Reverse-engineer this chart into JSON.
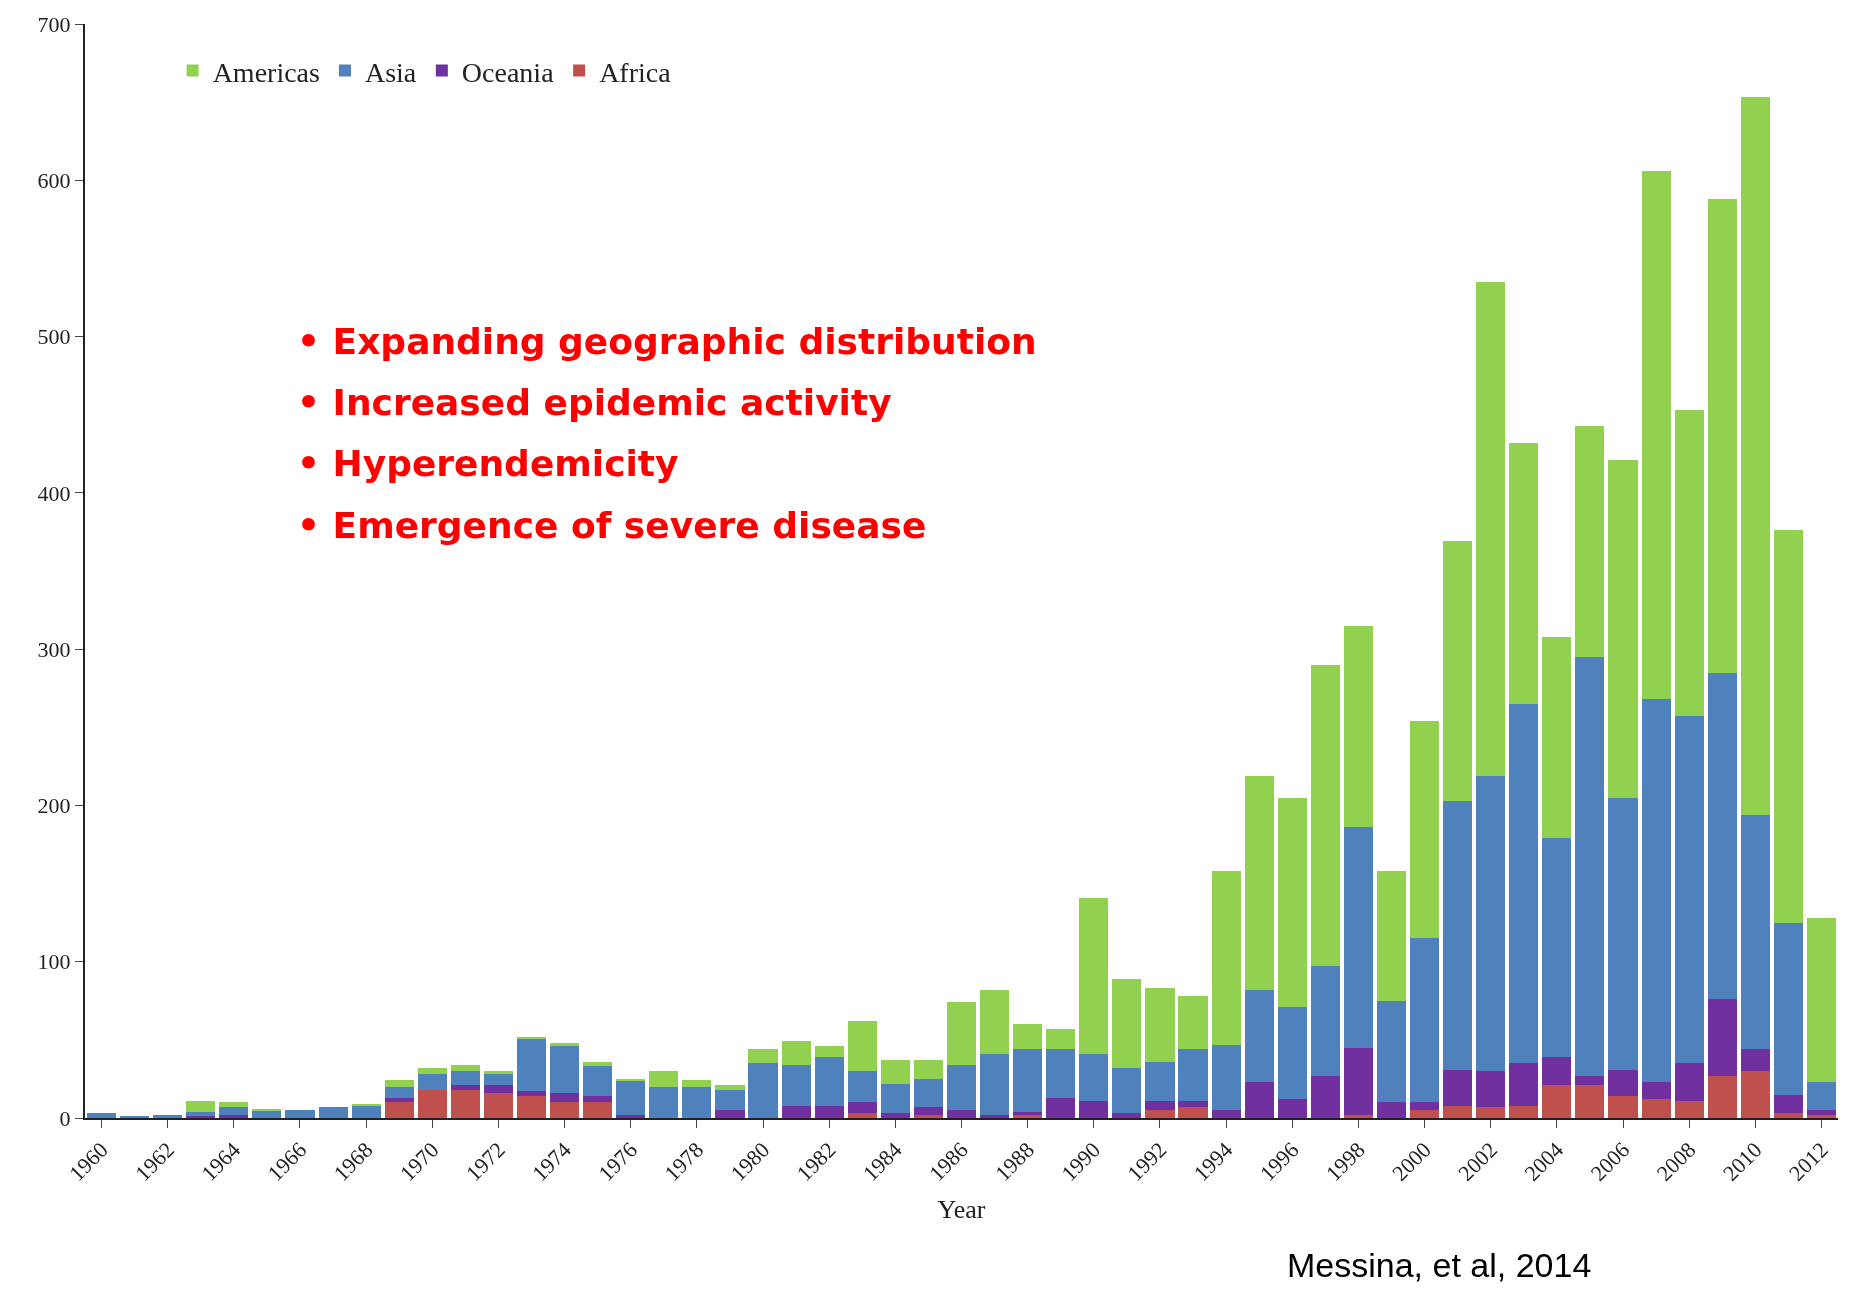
{
  "chart_data": {
    "type": "bar",
    "stacked": true,
    "xlabel": "Year",
    "categories": [
      "1960",
      null,
      "1962",
      null,
      "1964",
      null,
      "1966",
      null,
      "1968",
      null,
      "1970",
      null,
      "1972",
      null,
      "1974",
      null,
      "1976",
      null,
      "1978",
      null,
      "1980",
      null,
      "1982",
      null,
      "1984",
      null,
      "1986",
      null,
      "1988",
      null,
      "1990",
      null,
      "1992",
      null,
      "1994",
      null,
      "1996",
      null,
      "1998",
      null,
      "2000",
      null,
      "2002",
      null,
      "2004",
      null,
      "2006",
      null,
      "2008",
      null,
      "2010",
      null,
      "2012"
    ],
    "series": [
      {
        "name": "Africa",
        "color": "#c0504d",
        "values": [
          0,
          0,
          0,
          0,
          0,
          0,
          0,
          0,
          0,
          10,
          18,
          18,
          16,
          14,
          10,
          10,
          0,
          0,
          0,
          0,
          0,
          0,
          0,
          3,
          0,
          2,
          0,
          0,
          2,
          0,
          0,
          0,
          5,
          7,
          0,
          0,
          0,
          0,
          2,
          0,
          5,
          8,
          7,
          8,
          21,
          21,
          14,
          12,
          11,
          27,
          30,
          3,
          2
        ]
      },
      {
        "name": "Oceania",
        "color": "#7030a0",
        "values": [
          0,
          0,
          0,
          1,
          2,
          0,
          0,
          0,
          0,
          3,
          0,
          3,
          5,
          3,
          6,
          4,
          2,
          0,
          0,
          5,
          0,
          8,
          8,
          7,
          3,
          5,
          5,
          2,
          2,
          13,
          11,
          3,
          6,
          4,
          5,
          23,
          12,
          27,
          43,
          10,
          5,
          23,
          23,
          27,
          18,
          6,
          17,
          11,
          24,
          49,
          14,
          12,
          3
        ]
      },
      {
        "name": "Asia",
        "color": "#4f81bd",
        "values": [
          3,
          1,
          2,
          3,
          5,
          5,
          5,
          7,
          8,
          7,
          10,
          9,
          7,
          34,
          30,
          19,
          22,
          20,
          20,
          13,
          35,
          26,
          31,
          20,
          19,
          18,
          29,
          39,
          40,
          31,
          30,
          29,
          25,
          33,
          42,
          59,
          59,
          70,
          141,
          65,
          105,
          172,
          189,
          230,
          140,
          268,
          174,
          245,
          222,
          209,
          150,
          110,
          18
        ]
      },
      {
        "name": "Americas",
        "color": "#92d050",
        "values": [
          0,
          0,
          0,
          7,
          3,
          1,
          0,
          0,
          1,
          4,
          4,
          4,
          2,
          1,
          2,
          3,
          1,
          10,
          4,
          3,
          9,
          15,
          7,
          32,
          15,
          12,
          40,
          41,
          16,
          13,
          100,
          57,
          47,
          34,
          111,
          137,
          134,
          193,
          129,
          83,
          139,
          166,
          316,
          167,
          129,
          148,
          216,
          338,
          196,
          303,
          459,
          251,
          105
        ]
      }
    ],
    "ylim": [
      0,
      700
    ],
    "yticks": [
      0,
      100,
      200,
      300,
      400,
      500,
      600,
      700
    ],
    "legend": "top left",
    "annotations": [
      "• Expanding geographic distribution",
      "• Increased epidemic activity",
      "• Hyperendemicity",
      "• Emergence of severe disease",
      "Messina, et al, 2014"
    ]
  }
}
